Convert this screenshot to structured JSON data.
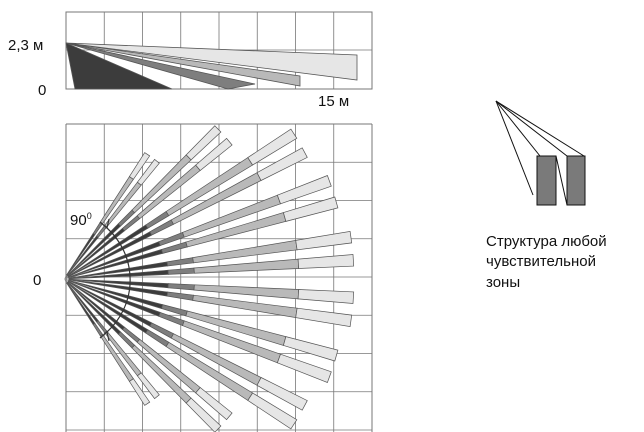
{
  "side_view": {
    "height_label": "2,3 м",
    "floor_label": "0",
    "distance_label": "15 м"
  },
  "top_view": {
    "origin_label": "0",
    "angle_label_base": "90",
    "angle_label_sup": "0"
  },
  "legend": {
    "caption_lines": [
      "Структура любой",
      "чувствительной",
      "зоны"
    ]
  },
  "colors": {
    "grid": "#777777",
    "zone_dark": "#3c3c3c",
    "zone_mid": "#7e7e7e",
    "zone_light": "#b9b9b9",
    "zone_pale": "#e6e6e6",
    "legend_block": "#7a7a7a"
  }
}
